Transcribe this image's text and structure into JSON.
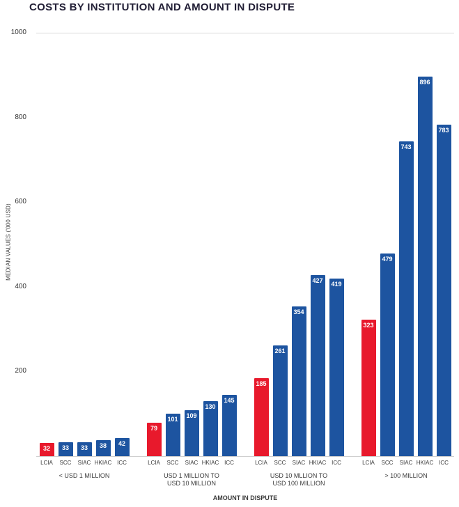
{
  "title": "COSTS BY INSTITUTION AND AMOUNT IN DISPUTE",
  "chart_data": {
    "type": "bar",
    "title": "COSTS BY INSTITUTION AND AMOUNT IN DISPUTE",
    "xlabel": "AMOUNT IN DISPUTE",
    "ylabel": "MEDIAN VALUES ('000 USD)",
    "ylim": [
      0,
      1000
    ],
    "yticks": [
      200,
      400,
      600,
      800,
      1000
    ],
    "grid": "top-line-only",
    "legend": "none",
    "institutions": [
      "LCIA",
      "SCC",
      "SIAC",
      "HKIAC",
      "ICC"
    ],
    "highlight_institution": "LCIA",
    "colors": {
      "highlight": "#e8192c",
      "default": "#1d54a0"
    },
    "categories": [
      "< USD 1 MILLION",
      "USD 1 MILLION TO\nUSD 10 MILLION",
      "USD 10 MLLION TO\nUSD 100 MILLION",
      "> 100 MILLION"
    ],
    "groups": [
      {
        "label": "< USD 1 MILLION",
        "values": [
          32,
          33,
          33,
          38,
          42
        ]
      },
      {
        "label": "USD 1 MILLION TO\nUSD 10 MILLION",
        "values": [
          79,
          101,
          109,
          130,
          145
        ]
      },
      {
        "label": "USD 10 MLLION TO\nUSD 100 MILLION",
        "values": [
          185,
          261,
          354,
          427,
          419
        ]
      },
      {
        "label": "> 100 MILLION",
        "values": [
          323,
          479,
          743,
          896,
          783
        ]
      }
    ]
  }
}
